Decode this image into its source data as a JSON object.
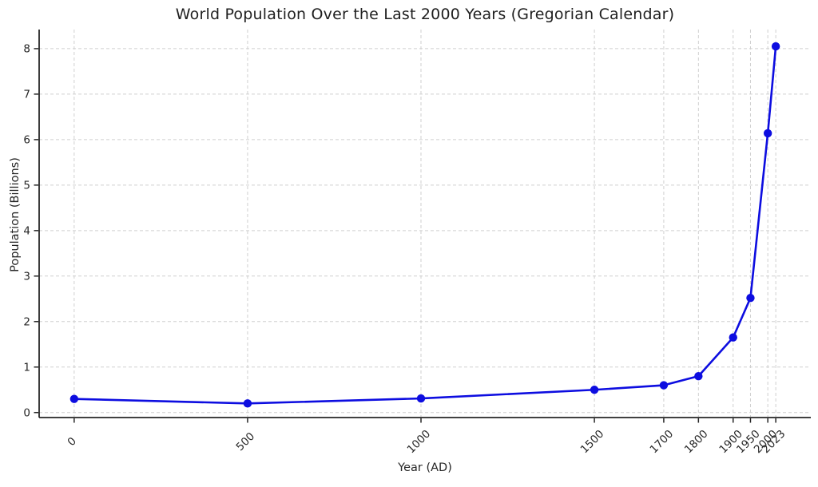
{
  "chart_data": {
    "type": "line",
    "title": "World Population Over the Last 2000 Years (Gregorian Calendar)",
    "xlabel": "Year (AD)",
    "ylabel": "Population (Billions)",
    "x": [
      0,
      500,
      1000,
      1500,
      1700,
      1800,
      1900,
      1950,
      2000,
      2023
    ],
    "y": [
      0.3,
      0.2,
      0.31,
      0.5,
      0.6,
      0.8,
      1.65,
      2.52,
      6.14,
      8.05
    ],
    "x_tick_labels": [
      "0",
      "500",
      "1000",
      "1500",
      "1700",
      "1800",
      "1900",
      "1950",
      "2000",
      "2023"
    ],
    "y_ticks": [
      0,
      1,
      2,
      3,
      4,
      5,
      6,
      7,
      8
    ],
    "xlim": [
      -101,
      2124
    ],
    "ylim": [
      -0.11,
      8.42
    ],
    "grid": true,
    "grid_style": "dashed",
    "legend": null,
    "colors": {
      "line": "#0d0de0",
      "marker": "#0d0de0",
      "grid": "#cfcfcf",
      "spine": "#262626",
      "tick_text": "#262626",
      "background": "#ffffff"
    }
  }
}
